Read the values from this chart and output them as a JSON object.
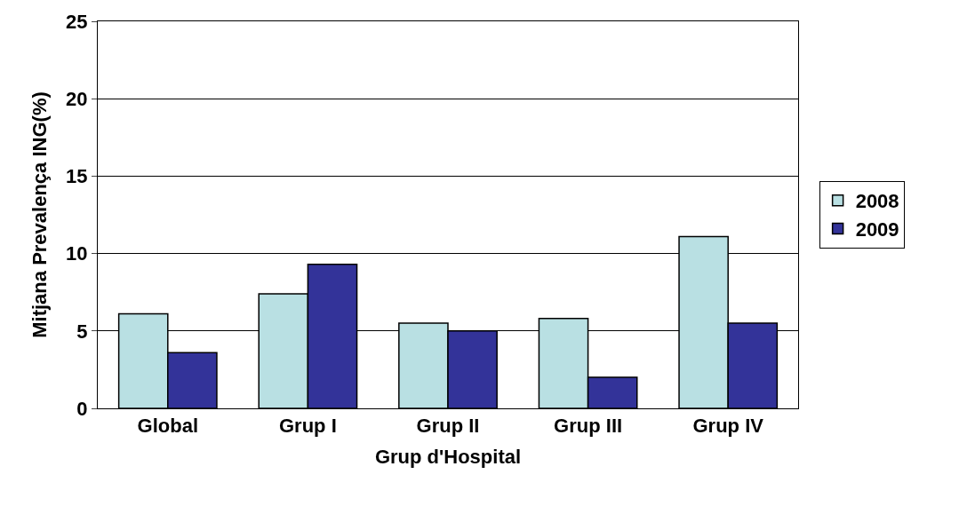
{
  "chart_data": {
    "type": "bar",
    "xlabel": "Grup d'Hospital",
    "ylabel": "Mitjana Prevalença ING(%)",
    "categories": [
      "Global",
      "Grup I",
      "Grup II",
      "Grup III",
      "Grup IV"
    ],
    "series": [
      {
        "name": "2008",
        "color": "#b9e0e3",
        "values": [
          6.1,
          7.4,
          5.5,
          5.8,
          11.1
        ]
      },
      {
        "name": "2009",
        "color": "#333399",
        "values": [
          3.6,
          9.3,
          5.0,
          2.0,
          5.5
        ]
      }
    ],
    "ylim": [
      0,
      25
    ],
    "yticks": [
      0,
      5,
      10,
      15,
      20,
      25
    ],
    "grid": "y",
    "legend": "right"
  }
}
